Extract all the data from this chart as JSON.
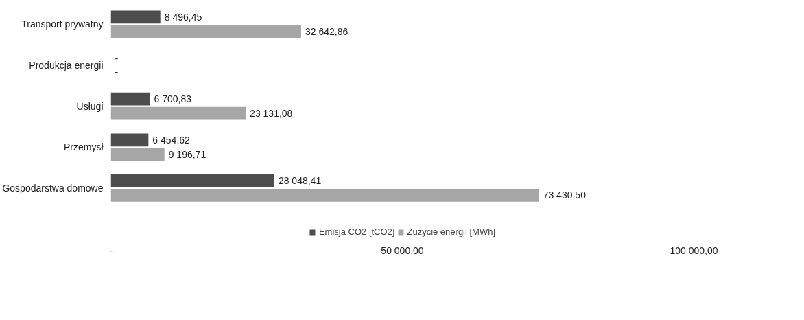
{
  "chart_data": {
    "type": "bar",
    "orientation": "horizontal",
    "categories": [
      "Transport prywatny",
      "Produkcja energii",
      "Usługi",
      "Przemysł",
      "Gospodarstwa domowe"
    ],
    "series": [
      {
        "name": "Emisja CO2 [tCO2]",
        "color": "#4d4d4d",
        "values": [
          8496.45,
          0,
          6700.83,
          6454.62,
          28048.41
        ],
        "value_labels": [
          "8 496,45",
          "-",
          "6 700,83",
          "6 454,62",
          "28 048,41"
        ]
      },
      {
        "name": "Zużycie energii [MWh]",
        "color": "#a6a6a6",
        "values": [
          32642.86,
          0,
          23131.08,
          9196.71,
          73430.5
        ],
        "value_labels": [
          "32 642,86",
          "-",
          "23 131,08",
          "9 196,71",
          "73 430,50"
        ]
      }
    ],
    "xlim": [
      0,
      100000
    ],
    "xticks": [
      {
        "value": 0,
        "label": "-"
      },
      {
        "value": 50000,
        "label": "50 000,00"
      },
      {
        "value": 100000,
        "label": "100 000,00"
      }
    ],
    "grid": false,
    "legend": "bottom"
  }
}
